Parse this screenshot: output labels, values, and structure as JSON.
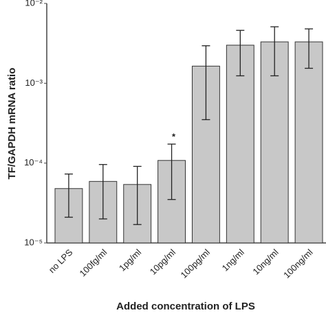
{
  "chart_data": {
    "type": "bar",
    "y_label": "TF/GAPDH mRNA ratio",
    "x_label": "Added concentration of LPS",
    "annotation": "*",
    "categories": [
      "no LPS",
      "100fg/ml",
      "1pg/ml",
      "10pg/ml",
      "100pg/ml",
      "1ng/ml",
      "10ng/ml",
      "100ng/ml"
    ],
    "values": [
      4.8e-05,
      5.9e-05,
      5.4e-05,
      0.000108,
      0.00164,
      0.003,
      0.0033,
      0.0033
    ],
    "error_low": [
      2.1e-05,
      2e-05,
      1.7e-05,
      3.5e-05,
      0.00035,
      0.00124,
      0.00124,
      0.00154
    ],
    "error_high": [
      7.3e-05,
      9.6e-05,
      9.1e-05,
      0.000173,
      0.00295,
      0.0046,
      0.0051,
      0.0048
    ],
    "color": "#c8c8c8",
    "log_scale": true,
    "grid": false,
    "ylim": [
      1e-05,
      0.01
    ],
    "yticks": [
      {
        "value": 1e-05,
        "label": "10⁻⁵"
      },
      {
        "value": 0.0001,
        "label": "10⁻⁴"
      },
      {
        "value": 0.001,
        "label": "10⁻³"
      },
      {
        "value": 0.01,
        "label": "10⁻²"
      }
    ]
  }
}
